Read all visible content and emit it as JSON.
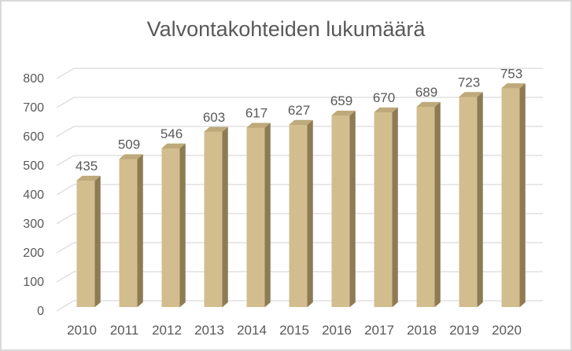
{
  "chart_data": {
    "type": "bar",
    "variant": "3d-column",
    "title": "Valvontakohteiden lukumäärä",
    "categories": [
      "2010",
      "2011",
      "2012",
      "2013",
      "2014",
      "2015",
      "2016",
      "2017",
      "2018",
      "2019",
      "2020"
    ],
    "values": [
      435,
      509,
      546,
      603,
      617,
      627,
      659,
      670,
      689,
      723,
      753
    ],
    "xlabel": "",
    "ylabel": "",
    "ylim": [
      0,
      800
    ],
    "ytick_step": 100,
    "yticks": [
      0,
      100,
      200,
      300,
      400,
      500,
      600,
      700,
      800
    ],
    "grid": true,
    "legend": "none",
    "data_labels": true,
    "colors": {
      "bar_front": "#D2BD8E",
      "bar_top": "#BDA97A",
      "bar_side": "#8D7B54",
      "gridline": "#D9D9D9",
      "axis_text": "#595959",
      "title_text": "#595959",
      "frame_border": "#D9D9D9",
      "background": "#FFFFFF"
    }
  }
}
